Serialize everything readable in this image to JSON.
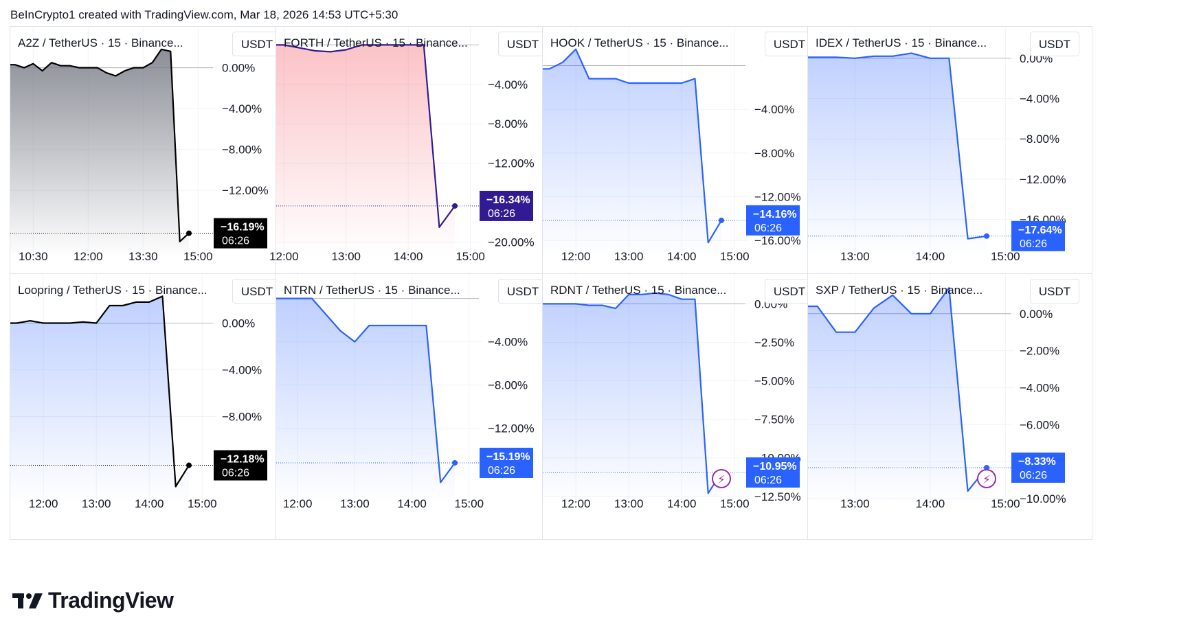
{
  "header": {
    "text": "BeInCrypto1 created with TradingView.com, Mar 18, 2026 14:53 UTC+5:30"
  },
  "brand": {
    "name": "TradingView"
  },
  "currency_button": "USDT",
  "chart_data": [
    {
      "type": "area",
      "title": "A2Z / TetherUS · 15 · Binance...",
      "currency": "USDT",
      "line_color": "#000000",
      "fill_color": "#787b86",
      "x": [
        "10:00",
        "10:15",
        "10:30",
        "10:45",
        "11:00",
        "11:15",
        "11:30",
        "11:45",
        "12:00",
        "12:15",
        "12:30",
        "12:45",
        "13:00",
        "13:15",
        "13:30",
        "13:45",
        "14:00",
        "14:15",
        "14:30",
        "14:45"
      ],
      "values": [
        0.3,
        0.0,
        0.4,
        -0.3,
        0.5,
        0.2,
        0.2,
        0.0,
        0.0,
        0.0,
        -0.5,
        -0.8,
        -0.3,
        0.0,
        0.0,
        0.5,
        1.8,
        1.6,
        -17.0,
        -16.19
      ],
      "ylim": [
        -18.5,
        3.2
      ],
      "yticks": [
        0,
        -4,
        -8,
        -12
      ],
      "ytick_labels": [
        "0.00%",
        "−4.00%",
        "−8.00%",
        "−12.00%"
      ],
      "xtick_labels": [
        "10:30",
        "12:00",
        "13:30",
        "15:00"
      ],
      "last": {
        "pct": "−16.19%",
        "time": "06:26",
        "color": "#000000"
      },
      "bolt": false
    },
    {
      "type": "area",
      "title": "FORTH / TetherUS · 15 · Binance...",
      "currency": "USDT",
      "line_color": "#311b92",
      "fill_color": "#f23645",
      "x": [
        "12:00",
        "12:15",
        "12:30",
        "12:45",
        "13:00",
        "13:15",
        "13:30",
        "13:45",
        "14:00",
        "14:15",
        "14:30",
        "14:45"
      ],
      "values": [
        0.0,
        -0.3,
        -0.6,
        -0.7,
        -0.5,
        0.0,
        0.0,
        0.0,
        0.0,
        0.0,
        -18.5,
        -16.34
      ],
      "ylim": [
        -21.5,
        1.0
      ],
      "yticks": [
        -4,
        -8,
        -12,
        -20
      ],
      "ytick_labels": [
        "−4.00%",
        "−8.00%",
        "−12.00%",
        "−20.00%"
      ],
      "xtick_labels": [
        "12:00",
        "13:00",
        "14:00",
        "15:00"
      ],
      "last": {
        "pct": "−16.34%",
        "time": "06:26",
        "color": "#311b92"
      },
      "bolt": false
    },
    {
      "type": "area",
      "title": "HOOK / TetherUS · 15 · Binance...",
      "currency": "USDT",
      "line_color": "#2962ff",
      "fill_color": "#2962ff",
      "x": [
        "11:30",
        "11:45",
        "12:00",
        "12:15",
        "12:30",
        "12:45",
        "13:00",
        "13:15",
        "13:30",
        "13:45",
        "14:00",
        "14:15",
        "14:30",
        "14:45"
      ],
      "values": [
        -0.3,
        0.3,
        1.5,
        -1.2,
        -1.2,
        -1.2,
        -1.6,
        -1.6,
        -1.6,
        -1.6,
        -1.6,
        -1.2,
        -16.2,
        -14.16
      ],
      "ylim": [
        -17.5,
        2.8
      ],
      "yticks": [
        -4,
        -8,
        -12,
        -16
      ],
      "ytick_labels": [
        "−4.00%",
        "−8.00%",
        "−12.00%",
        "−16.00%"
      ],
      "xtick_labels": [
        "12:00",
        "13:00",
        "14:00",
        "15:00"
      ],
      "last": {
        "pct": "−14.16%",
        "time": "06:26",
        "color": "#2962ff"
      },
      "bolt": false
    },
    {
      "type": "area",
      "title": "IDEX / TetherUS · 15 · Binance...",
      "currency": "USDT",
      "line_color": "#2962ff",
      "fill_color": "#2962ff",
      "x": [
        "12:30",
        "12:45",
        "13:00",
        "13:15",
        "13:30",
        "13:45",
        "14:00",
        "14:15",
        "14:30",
        "14:45"
      ],
      "values": [
        0.1,
        0.1,
        0.0,
        0.2,
        0.2,
        0.5,
        0.0,
        0.0,
        -17.9,
        -17.64
      ],
      "ylim": [
        -19.7,
        2.3
      ],
      "yticks": [
        0,
        -4,
        -8,
        -12,
        -16
      ],
      "ytick_labels": [
        "0.00%",
        "−4.00%",
        "−8.00%",
        "−12.00%",
        "−16.00%"
      ],
      "xtick_labels": [
        "13:00",
        "14:00",
        "15:00"
      ],
      "last": {
        "pct": "−17.64%",
        "time": "06:26",
        "color": "#2962ff"
      },
      "bolt": false
    },
    {
      "type": "area",
      "title": "Loopring / TetherUS · 15 · Binance...",
      "currency": "USDT",
      "line_color": "#000000",
      "fill_color": "#2962ff",
      "x": [
        "11:30",
        "11:45",
        "12:00",
        "12:15",
        "12:30",
        "12:45",
        "13:00",
        "13:15",
        "13:30",
        "13:45",
        "14:00",
        "14:15",
        "14:30",
        "14:45"
      ],
      "values": [
        0.0,
        0.2,
        0.0,
        0.0,
        0.0,
        0.1,
        0.0,
        1.5,
        1.5,
        1.8,
        1.8,
        2.3,
        -14.0,
        -12.18
      ],
      "ylim": [
        -15.5,
        3.5
      ],
      "yticks": [
        0,
        -4,
        -8
      ],
      "ytick_labels": [
        "0.00%",
        "−4.00%",
        "−8.00%"
      ],
      "xtick_labels": [
        "12:00",
        "13:00",
        "14:00",
        "15:00"
      ],
      "last": {
        "pct": "−12.18%",
        "time": "06:26",
        "color": "#000000"
      },
      "bolt": false
    },
    {
      "type": "area",
      "title": "NTRN / TetherUS · 15 · Binance...",
      "currency": "USDT",
      "line_color": "#2962ff",
      "fill_color": "#2962ff",
      "x": [
        "11:45",
        "12:00",
        "12:15",
        "12:30",
        "12:45",
        "13:00",
        "13:15",
        "13:30",
        "13:45",
        "14:00",
        "14:15",
        "14:30",
        "14:45"
      ],
      "values": [
        0.0,
        0.0,
        0.0,
        -1.5,
        -3.0,
        -4.0,
        -2.5,
        -2.5,
        -2.5,
        -2.5,
        -2.5,
        -17.0,
        -15.19
      ],
      "ylim": [
        -19.0,
        1.5
      ],
      "yticks": [
        -4,
        -8,
        -12
      ],
      "ytick_labels": [
        "−4.00%",
        "−8.00%",
        "−12.00%"
      ],
      "xtick_labels": [
        "12:00",
        "13:00",
        "14:00",
        "15:00"
      ],
      "last": {
        "pct": "−15.19%",
        "time": "06:26",
        "color": "#2962ff"
      },
      "bolt": false
    },
    {
      "type": "area",
      "title": "RDNT / TetherUS · 15 · Binance...",
      "currency": "USDT",
      "line_color": "#2962ff",
      "fill_color": "#2962ff",
      "x": [
        "11:30",
        "11:45",
        "12:00",
        "12:15",
        "12:30",
        "12:45",
        "13:00",
        "13:15",
        "13:30",
        "13:45",
        "14:00",
        "14:15",
        "14:30",
        "14:45"
      ],
      "values": [
        0.0,
        0.0,
        0.0,
        -0.1,
        -0.1,
        -0.3,
        0.6,
        0.6,
        0.7,
        0.6,
        0.3,
        0.3,
        -12.3,
        -10.95
      ],
      "ylim": [
        -13.0,
        1.4
      ],
      "yticks": [
        0,
        -2.5,
        -5,
        -7.5,
        -10,
        -12.5
      ],
      "ytick_labels": [
        "0.00%",
        "−2.50%",
        "−5.00%",
        "−7.50%",
        "−10.00%",
        "−12.50%"
      ],
      "xtick_labels": [
        "12:00",
        "13:00",
        "14:00",
        "15:00"
      ],
      "last": {
        "pct": "−10.95%",
        "time": "06:26",
        "color": "#2962ff"
      },
      "bolt": true
    },
    {
      "type": "area",
      "title": "SXP / TetherUS · 15 · Binance...",
      "currency": "USDT",
      "line_color": "#2962ff",
      "fill_color": "#2962ff",
      "x": [
        "12:30",
        "12:45",
        "13:00",
        "13:15",
        "13:30",
        "13:45",
        "14:00",
        "14:15",
        "14:30",
        "14:45"
      ],
      "values": [
        0.4,
        -1.0,
        -1.0,
        0.3,
        1.0,
        0.0,
        0.0,
        1.4,
        -9.6,
        -8.33
      ],
      "ylim": [
        -10.3,
        1.7
      ],
      "yticks": [
        0,
        -2,
        -4,
        -6,
        -8,
        -10
      ],
      "ytick_labels": [
        "0.00%",
        "−2.00%",
        "−4.00%",
        "−6.00%",
        "−8.00%",
        "−10.00%"
      ],
      "xtick_labels": [
        "13:00",
        "14:00",
        "15:00"
      ],
      "last": {
        "pct": "−8.33%",
        "time": "06:26",
        "color": "#2962ff"
      },
      "bolt": true
    }
  ]
}
